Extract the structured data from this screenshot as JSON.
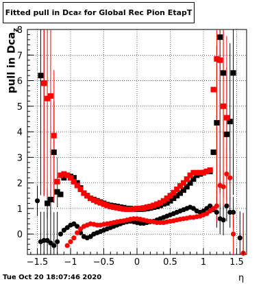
{
  "title": "Fitted pull in Dca",
  "title_sub": "z",
  "title_suffix": " for Global Rec Pion EtapT",
  "footer": "Tue Oct 20 18:07:46 2020",
  "chart_data": {
    "type": "scatter",
    "xlabel": "η",
    "ylabel": "pull in Dca",
    "ylabel_sub": "z",
    "xlim": [
      -1.65,
      1.65
    ],
    "ylim": [
      -0.8,
      8
    ],
    "grid": true,
    "x_ticks": [
      -1.5,
      -1,
      -0.5,
      0,
      0.5,
      1,
      1.5
    ],
    "x_tick_labels": [
      "−1.5",
      "−1",
      "−0.5",
      "0",
      "0.5",
      "1",
      "1.5"
    ],
    "y_ticks": [
      0,
      1,
      2,
      3,
      4,
      5,
      6,
      7,
      8
    ],
    "y_tick_labels": [
      "0",
      "1",
      "2",
      "3",
      "4",
      "5",
      "6",
      "7",
      "8"
    ],
    "series": [
      {
        "marker": "filled-square",
        "color": "#000000",
        "x": [
          -1.45,
          -1.4,
          -1.35,
          -1.3,
          -1.25,
          -1.2,
          -1.15,
          -1.1,
          -1.05,
          -1.0,
          -0.95,
          -0.9,
          -0.85,
          -0.8,
          -0.75,
          -0.7,
          -0.65,
          -0.6,
          -0.55,
          -0.5,
          -0.45,
          -0.4,
          -0.35,
          -0.3,
          -0.25,
          -0.2,
          -0.15,
          -0.1,
          -0.05,
          0.0,
          0.05,
          0.1,
          0.15,
          0.2,
          0.25,
          0.3,
          0.35,
          0.4,
          0.45,
          0.5,
          0.55,
          0.6,
          0.65,
          0.7,
          0.75,
          0.8,
          0.85,
          0.9,
          0.95,
          1.0,
          1.05,
          1.1,
          1.15,
          1.2,
          1.25,
          1.3,
          1.35,
          1.4,
          1.45
        ],
        "y": [
          6.2,
          5.9,
          1.2,
          1.35,
          3.2,
          1.65,
          1.55,
          2.2,
          2.3,
          2.25,
          2.2,
          2.0,
          1.8,
          1.6,
          1.5,
          1.4,
          1.35,
          1.3,
          1.25,
          1.2,
          1.15,
          1.12,
          1.1,
          1.08,
          1.05,
          1.03,
          1.0,
          1.0,
          0.98,
          0.97,
          0.97,
          0.98,
          1.0,
          1.02,
          1.05,
          1.08,
          1.12,
          1.18,
          1.22,
          1.3,
          1.4,
          1.5,
          1.6,
          1.72,
          1.85,
          2.0,
          2.15,
          2.3,
          2.35,
          2.4,
          2.45,
          2.45,
          3.2,
          4.35,
          7.7,
          6.3,
          3.9,
          4.4,
          6.3
        ]
      },
      {
        "marker": "filled-square",
        "color": "#ff0000",
        "x": [
          -1.4,
          -1.35,
          -1.3,
          -1.25,
          -1.2,
          -1.15,
          -1.1,
          -1.05,
          -1.0,
          -0.95,
          -0.9,
          -0.85,
          -0.8,
          -0.75,
          -0.7,
          -0.65,
          -0.6,
          -0.55,
          -0.5,
          -0.45,
          -0.4,
          -0.35,
          -0.3,
          -0.25,
          -0.2,
          -0.15,
          -0.1,
          -0.05,
          0.0,
          0.05,
          0.1,
          0.15,
          0.2,
          0.25,
          0.3,
          0.35,
          0.4,
          0.45,
          0.5,
          0.55,
          0.6,
          0.65,
          0.7,
          0.75,
          0.8,
          0.85,
          0.9,
          0.95,
          1.0,
          1.05,
          1.1,
          1.15,
          1.2,
          1.25,
          1.3,
          1.35
        ],
        "y": [
          5.9,
          5.3,
          5.4,
          3.85,
          2.05,
          2.3,
          2.35,
          2.3,
          2.2,
          2.05,
          1.9,
          1.75,
          1.6,
          1.5,
          1.4,
          1.33,
          1.27,
          1.22,
          1.17,
          1.12,
          1.08,
          1.05,
          1.03,
          1.0,
          0.98,
          0.97,
          0.97,
          0.98,
          1.0,
          1.0,
          1.02,
          1.05,
          1.08,
          1.12,
          1.17,
          1.22,
          1.3,
          1.4,
          1.5,
          1.62,
          1.75,
          1.88,
          2.0,
          2.15,
          2.3,
          2.4,
          2.4,
          2.4,
          2.4,
          2.45,
          2.5,
          5.65,
          6.85,
          6.8,
          5.0,
          4.55
        ]
      },
      {
        "marker": "filled-circle",
        "color": "#000000",
        "x": [
          -1.5,
          -1.45,
          -1.4,
          -1.35,
          -1.3,
          -1.25,
          -1.2,
          -1.15,
          -1.1,
          -1.05,
          -1.0,
          -0.95,
          -0.9,
          -0.85,
          -0.8,
          -0.75,
          -0.7,
          -0.65,
          -0.6,
          -0.55,
          -0.5,
          -0.45,
          -0.4,
          -0.35,
          -0.3,
          -0.25,
          -0.2,
          -0.15,
          -0.1,
          -0.05,
          0.0,
          0.05,
          0.1,
          0.15,
          0.2,
          0.25,
          0.3,
          0.35,
          0.4,
          0.45,
          0.5,
          0.55,
          0.6,
          0.65,
          0.7,
          0.75,
          0.8,
          0.85,
          0.9,
          0.95,
          1.0,
          1.05,
          1.1,
          1.15,
          1.2,
          1.25,
          1.3,
          1.35,
          1.4,
          1.45,
          1.55,
          1.6
        ],
        "y": [
          1.3,
          -0.3,
          -0.25,
          -0.25,
          -0.35,
          -0.45,
          -0.3,
          0.0,
          0.15,
          0.25,
          0.35,
          0.4,
          0.3,
          0.05,
          -0.1,
          -0.15,
          -0.1,
          0.0,
          0.05,
          0.1,
          0.15,
          0.2,
          0.25,
          0.3,
          0.35,
          0.4,
          0.45,
          0.48,
          0.5,
          0.48,
          0.45,
          0.42,
          0.42,
          0.45,
          0.48,
          0.5,
          0.55,
          0.6,
          0.65,
          0.7,
          0.75,
          0.8,
          0.85,
          0.9,
          0.95,
          1.0,
          1.05,
          1.0,
          0.9,
          0.85,
          0.9,
          1.0,
          1.1,
          0.95,
          0.85,
          0.6,
          0.55,
          1.1,
          0.85,
          0.85,
          -0.15,
          -0.75
        ]
      },
      {
        "marker": "filled-circle",
        "color": "#ff0000",
        "x": [
          -1.05,
          -1.0,
          -0.95,
          -0.9,
          -0.85,
          -0.8,
          -0.75,
          -0.7,
          -0.65,
          -0.6,
          -0.55,
          -0.5,
          -0.45,
          -0.4,
          -0.35,
          -0.3,
          -0.25,
          -0.2,
          -0.15,
          -0.1,
          -0.05,
          0.0,
          0.05,
          0.1,
          0.15,
          0.2,
          0.25,
          0.3,
          0.35,
          0.4,
          0.45,
          0.5,
          0.55,
          0.6,
          0.65,
          0.7,
          0.75,
          0.8,
          0.85,
          0.9,
          0.95,
          1.0,
          1.05,
          1.1,
          1.15,
          1.2,
          1.25,
          1.3,
          1.35,
          1.4,
          1.45,
          1.6
        ],
        "y": [
          -0.45,
          -0.3,
          -0.15,
          0.05,
          0.2,
          0.3,
          0.35,
          0.4,
          0.38,
          0.35,
          0.35,
          0.38,
          0.4,
          0.42,
          0.45,
          0.48,
          0.5,
          0.52,
          0.55,
          0.58,
          0.6,
          0.6,
          0.58,
          0.55,
          0.52,
          0.5,
          0.48,
          0.45,
          0.45,
          0.45,
          0.48,
          0.5,
          0.52,
          0.55,
          0.58,
          0.6,
          0.62,
          0.65,
          0.65,
          0.68,
          0.7,
          0.75,
          0.8,
          0.9,
          1.0,
          1.1,
          1.9,
          1.85,
          2.35,
          2.2,
          0.0,
          -0.75
        ]
      }
    ]
  }
}
